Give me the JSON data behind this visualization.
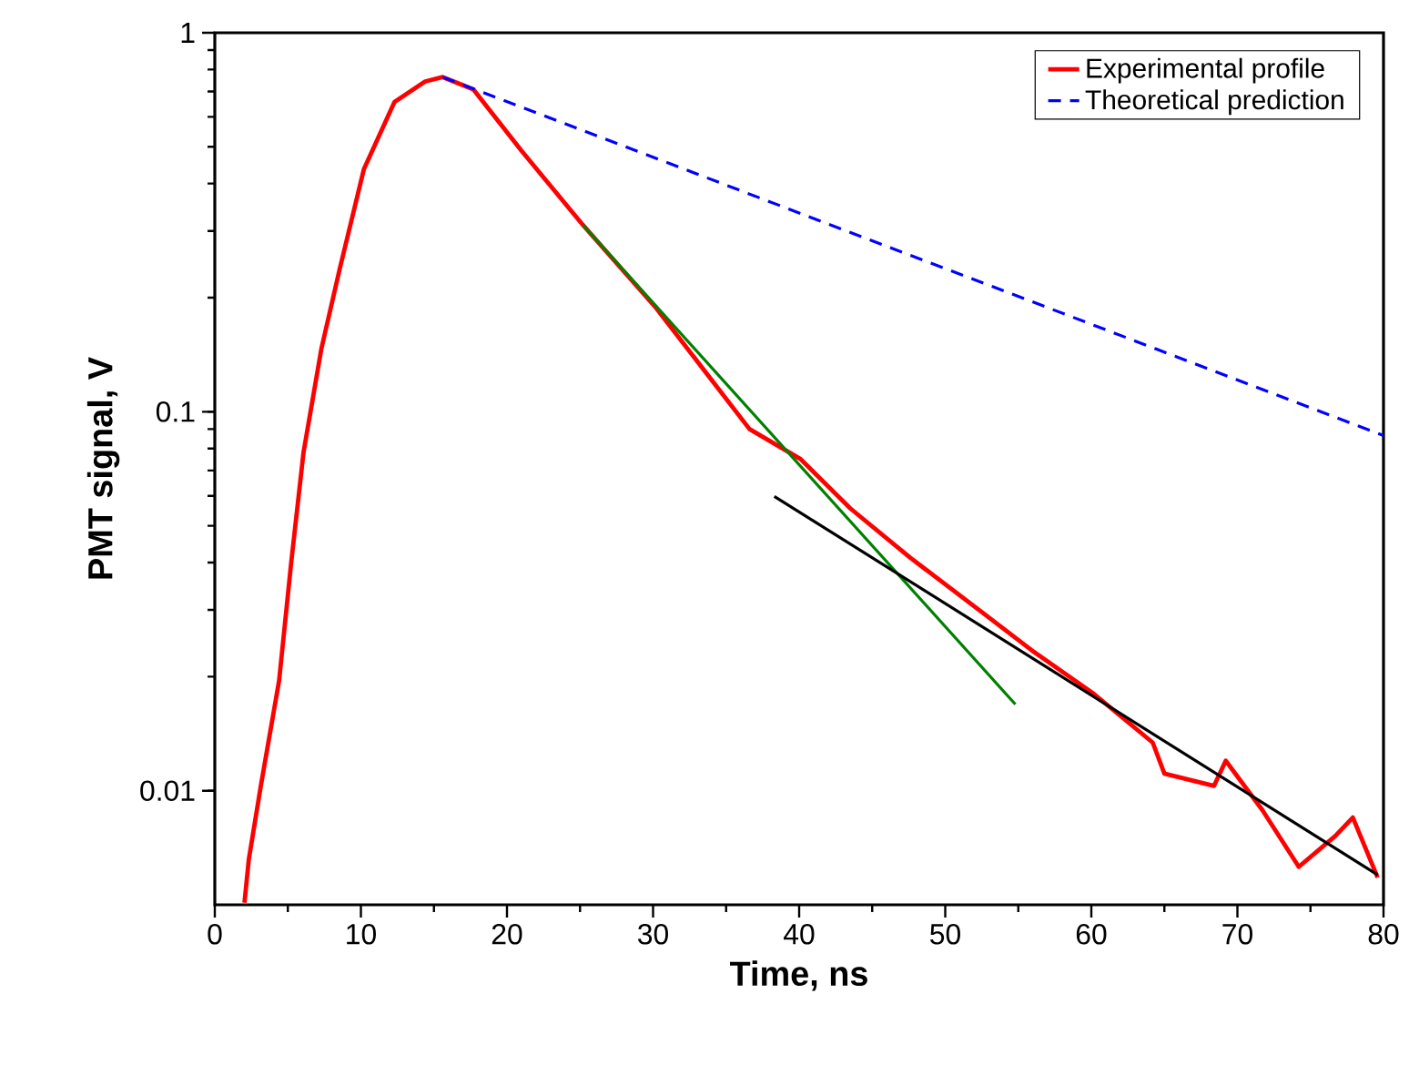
{
  "chart_data": {
    "type": "line",
    "xlabel": "Time, ns",
    "ylabel": "PMT signal, V",
    "log": "y",
    "legend": "top right",
    "xlim": [
      0,
      80
    ],
    "ylim": [
      0.005,
      1
    ],
    "xticks": [
      0,
      10,
      20,
      30,
      40,
      50,
      60,
      70,
      80
    ],
    "yticks": [
      0.01,
      0.1,
      1
    ],
    "series": [
      {
        "name": "Experimental profile",
        "color": "#ff0000",
        "line_style": "solid",
        "x": [
          2.03,
          2.33,
          3.15,
          4.4,
          5.23,
          6.07,
          7.3,
          8.56,
          10.2,
          12.3,
          14.4,
          15.6,
          17.7,
          21.0,
          25.2,
          30.2,
          36.6,
          40.1,
          43.5,
          47.6,
          52.6,
          55.9,
          60.1,
          64.2,
          65.0,
          68.4,
          69.2,
          71.7,
          74.2,
          76.7,
          77.9,
          79.6
        ],
        "values": [
          0.00506,
          0.0066,
          0.0103,
          0.0195,
          0.04,
          0.078,
          0.147,
          0.239,
          0.436,
          0.657,
          0.744,
          0.764,
          0.709,
          0.488,
          0.311,
          0.188,
          0.09,
          0.075,
          0.0556,
          0.0412,
          0.0294,
          0.0235,
          0.0181,
          0.0134,
          0.0111,
          0.0103,
          0.012,
          0.0089,
          0.0063,
          0.0076,
          0.0085,
          0.0059
        ]
      },
      {
        "name": "Theoretical prediction",
        "color": "#0000ff",
        "line_style": "dashed",
        "x": [
          15.6,
          80
        ],
        "values": [
          0.764,
          0.0865
        ]
      },
      {
        "color": "#008000",
        "line_style": "solid",
        "x": [
          25.2,
          54.8
        ],
        "values": [
          0.311,
          0.0169
        ]
      },
      {
        "color": "#000000",
        "line_style": "solid",
        "x": [
          38.3,
          79.6
        ],
        "values": [
          0.0598,
          0.006
        ]
      }
    ]
  }
}
